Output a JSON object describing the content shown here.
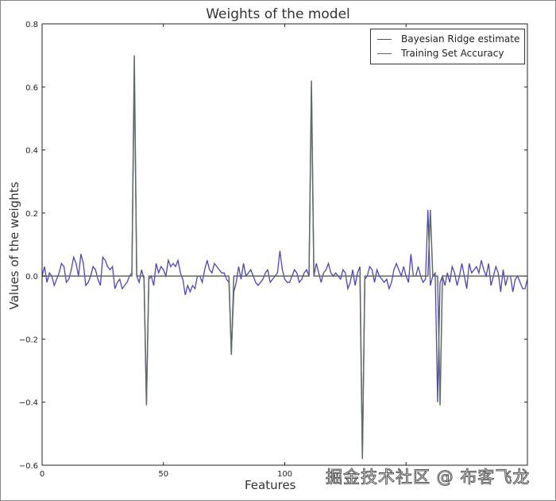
{
  "title": "Weights of the model",
  "xlabel": "Features",
  "ylabel": "Values of the weights",
  "watermark": "掘金技术社区 @ 布客飞龙",
  "legend": [
    {
      "label": "Bayesian Ridge estimate",
      "color": "#4b45b8"
    },
    {
      "label": "Training Set Accuracy",
      "color": "#5f6b62"
    }
  ],
  "chart_data": {
    "type": "line",
    "title": "Weights of the model",
    "xlabel": "Features",
    "ylabel": "Values of the weights",
    "xlim": [
      0,
      200
    ],
    "ylim": [
      -0.6,
      0.8
    ],
    "xticks": [
      0,
      50,
      100
    ],
    "yticks": [
      -0.6,
      -0.4,
      -0.2,
      0.0,
      0.2,
      0.4,
      0.6,
      0.8
    ],
    "legend_position": "upper right",
    "grid": false,
    "series": [
      {
        "name": "Training Set Accuracy",
        "color": "#5f6b62",
        "nonzero_points": {
          "38": 0.7,
          "43": -0.41,
          "78": -0.25,
          "111": 0.62,
          "132": -0.58,
          "160": 0.21,
          "164": -0.41
        },
        "n": 200,
        "baseline": 0.0
      },
      {
        "name": "Bayesian Ridge estimate",
        "color": "#4b45b8",
        "values": [
          0.0,
          0.03,
          -0.02,
          0.01,
          0.0,
          -0.03,
          -0.01,
          0.01,
          0.04,
          0.03,
          -0.02,
          -0.01,
          0.02,
          0.06,
          0.04,
          0.0,
          0.07,
          0.04,
          -0.03,
          -0.02,
          0.0,
          0.03,
          0.02,
          -0.01,
          -0.03,
          0.06,
          0.05,
          0.03,
          0.02,
          0.03,
          -0.04,
          -0.02,
          -0.01,
          -0.04,
          -0.03,
          -0.02,
          0.0,
          0.01,
          0.65,
          0.0,
          -0.02,
          0.02,
          -0.01,
          -0.4,
          -0.01,
          0.0,
          -0.03,
          0.04,
          0.01,
          0.03,
          0.02,
          0.0,
          0.05,
          0.03,
          0.04,
          0.03,
          0.05,
          0.01,
          -0.01,
          -0.06,
          -0.03,
          -0.05,
          -0.03,
          -0.04,
          0.0,
          0.0,
          -0.02,
          0.02,
          0.05,
          0.02,
          0.01,
          0.04,
          0.03,
          0.02,
          0.01,
          0.01,
          -0.01,
          -0.02,
          -0.24,
          -0.05,
          -0.02,
          0.03,
          -0.01,
          0.04,
          0.0,
          0.01,
          0.02,
          0.0,
          -0.02,
          -0.03,
          -0.02,
          -0.01,
          0.01,
          0.02,
          -0.02,
          -0.01,
          0.0,
          0.01,
          0.08,
          0.02,
          -0.01,
          -0.02,
          -0.02,
          0.0,
          0.02,
          0.01,
          -0.02,
          -0.01,
          0.01,
          0.02,
          0.0,
          0.6,
          0.0,
          0.04,
          0.01,
          -0.02,
          0.01,
          0.02,
          0.04,
          0.01,
          0.0,
          0.01,
          0.0,
          -0.01,
          0.02,
          0.01,
          -0.04,
          -0.02,
          0.02,
          -0.03,
          0.01,
          0.03,
          -0.57,
          -0.01,
          0.0,
          0.03,
          0.02,
          -0.02,
          0.02,
          0.0,
          -0.01,
          -0.02,
          -0.01,
          -0.04,
          -0.02,
          0.02,
          0.04,
          0.02,
          0.0,
          0.03,
          0.0,
          -0.02,
          0.07,
          0.0,
          0.0,
          0.03,
          0.0,
          -0.02,
          -0.01,
          0.21,
          -0.03,
          0.0,
          0.01,
          -0.4,
          -0.02,
          0.0,
          -0.03,
          0.01,
          -0.02,
          0.03,
          0.01,
          -0.03,
          0.0,
          0.04,
          0.0,
          -0.04,
          0.04,
          0.01,
          0.02,
          0.03,
          0.01,
          0.05,
          0.02,
          0.0,
          0.04,
          -0.03,
          0.0,
          0.03,
          0.01,
          -0.05,
          0.02,
          -0.03,
          0.0,
          0.0,
          -0.05,
          -0.01,
          0.0,
          -0.02,
          -0.04,
          -0.04,
          -0.01
        ]
      }
    ]
  }
}
